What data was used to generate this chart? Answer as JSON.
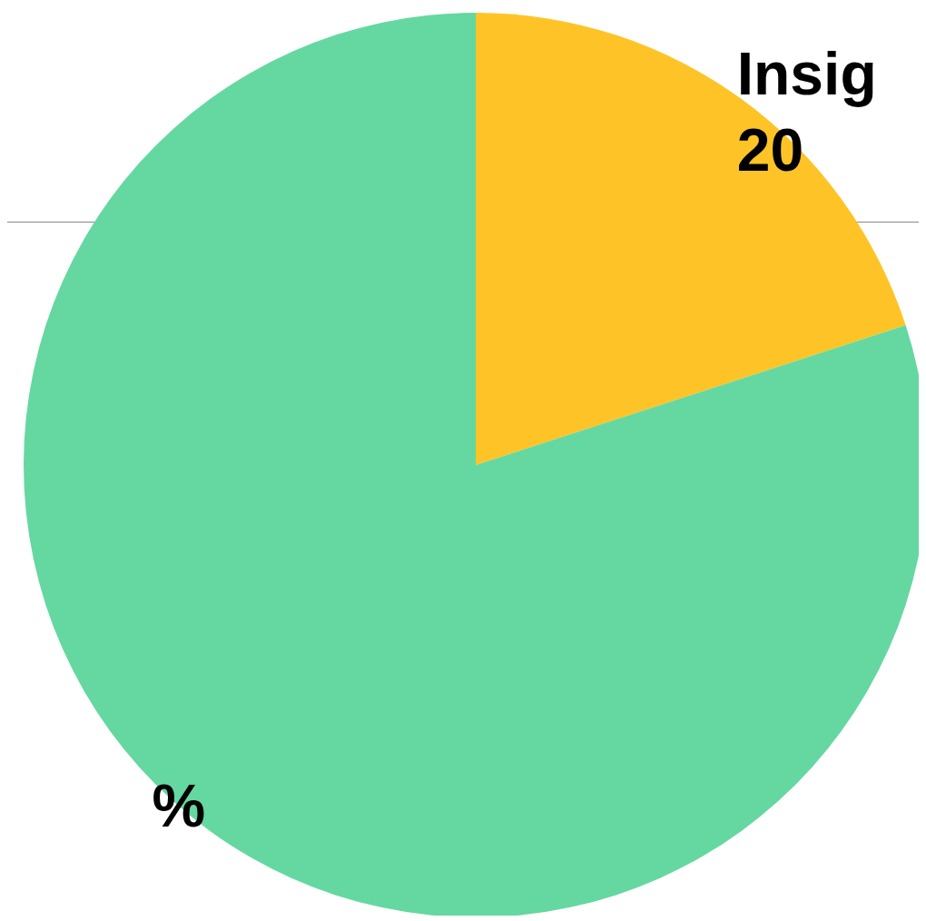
{
  "chart_data": {
    "type": "pie",
    "categories": [
      "Insig",
      null
    ],
    "values": [
      20,
      80
    ],
    "colors": [
      "#fec427",
      "#64d8a0"
    ],
    "value_labels": [
      "20",
      "%"
    ]
  }
}
